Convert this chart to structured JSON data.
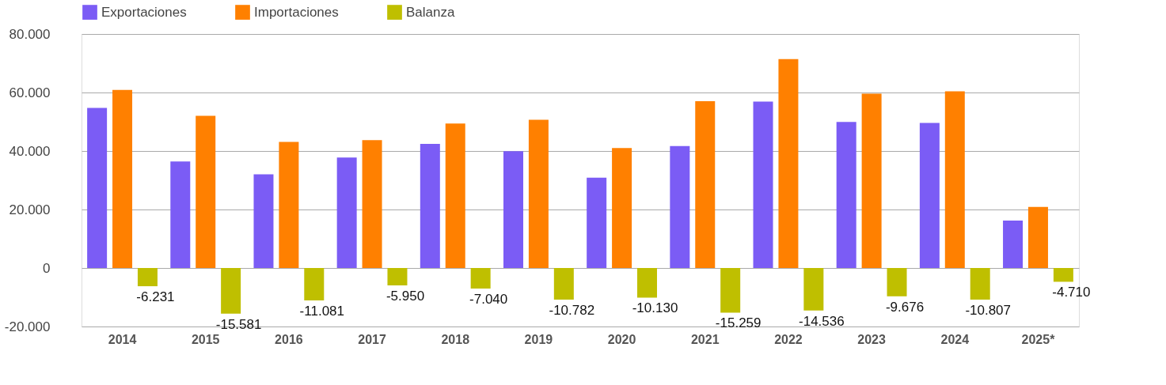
{
  "chart_data": {
    "type": "bar",
    "categories": [
      "2014",
      "2015",
      "2016",
      "2017",
      "2018",
      "2019",
      "2020",
      "2021",
      "2022",
      "2023",
      "2024",
      "2025*"
    ],
    "series": [
      {
        "name": "Exportaciones",
        "color": "#7b5cf5",
        "values": [
          54700,
          36400,
          32000,
          37800,
          42400,
          39900,
          30900,
          41700,
          56900,
          49900,
          49600,
          16200
        ]
      },
      {
        "name": "Importaciones",
        "color": "#ff8000",
        "values": [
          60900,
          52000,
          43100,
          43700,
          49400,
          50700,
          41000,
          57000,
          71400,
          59600,
          60400,
          20900
        ]
      },
      {
        "name": "Balanza",
        "color": "#bfbf00",
        "values": [
          -6231,
          -15581,
          -11081,
          -5950,
          -7040,
          -10782,
          -10130,
          -15259,
          -14536,
          -9676,
          -10807,
          -4710
        ],
        "value_labels": [
          "-6.231",
          "-15.581",
          "-11.081",
          "-5.950",
          "-7.040",
          "-10.782",
          "-10.130",
          "-15.259",
          "-14.536",
          "-9.676",
          "-10.807",
          "-4.710"
        ]
      }
    ],
    "ylim": [
      -20000,
      80000
    ],
    "yticks": [
      {
        "value": -20000,
        "label": "-20.000"
      },
      {
        "value": 0,
        "label": "0"
      },
      {
        "value": 20000,
        "label": "20.000"
      },
      {
        "value": 40000,
        "label": "40.000"
      },
      {
        "value": 60000,
        "label": "60.000"
      },
      {
        "value": 80000,
        "label": "80.000"
      }
    ],
    "grid": "y",
    "legend": "top"
  }
}
